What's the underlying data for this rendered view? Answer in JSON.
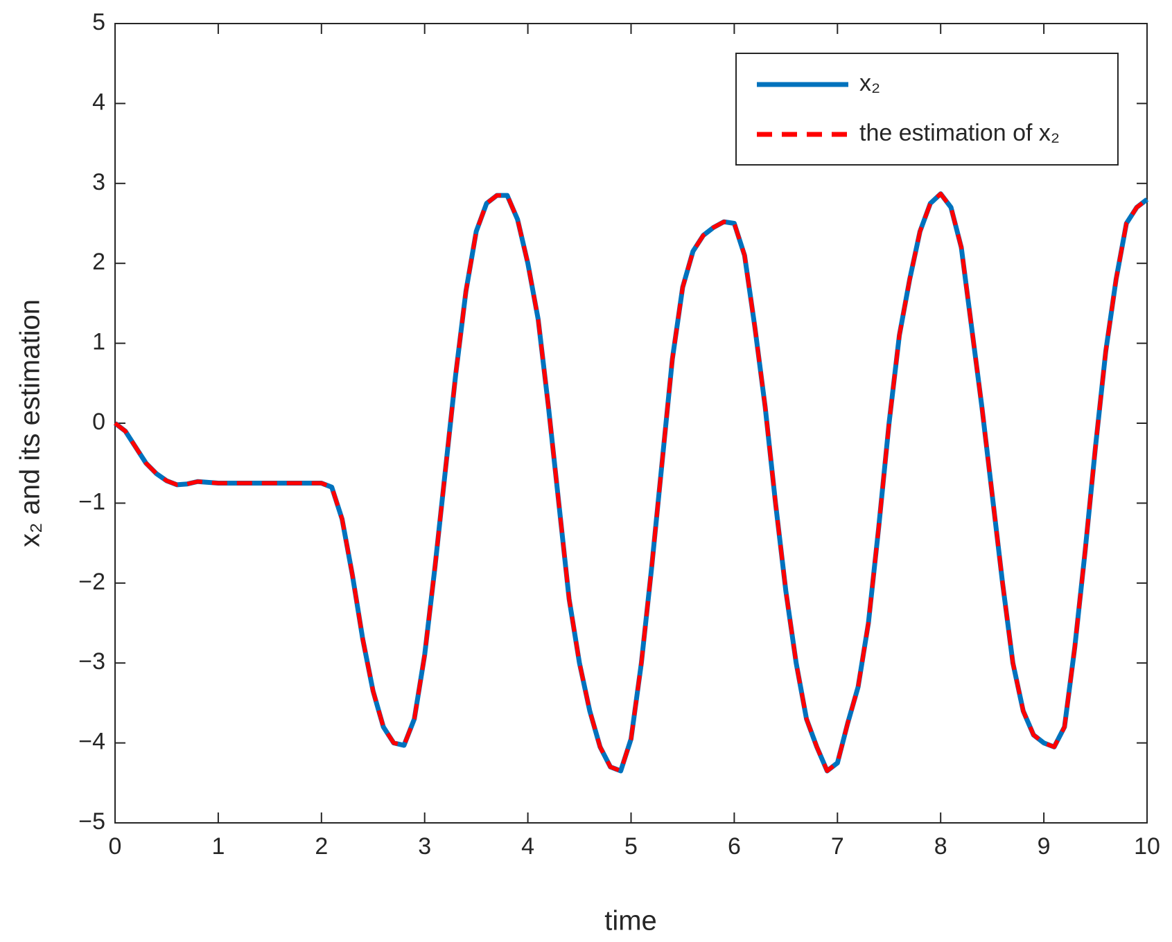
{
  "chart_data": {
    "type": "line",
    "xlabel": "time",
    "ylabel": "x₂ and its estimation",
    "x": [
      0,
      0.1,
      0.2,
      0.3,
      0.4,
      0.5,
      0.6,
      0.7,
      0.8,
      0.9,
      1,
      1.1,
      1.2,
      1.3,
      1.4,
      1.5,
      1.6,
      1.7,
      1.8,
      1.9,
      2,
      2.1,
      2.2,
      2.3,
      2.4,
      2.5,
      2.6,
      2.7,
      2.8,
      2.9,
      3,
      3.1,
      3.2,
      3.3,
      3.4,
      3.5,
      3.6,
      3.7,
      3.8,
      3.9,
      4,
      4.1,
      4.2,
      4.3,
      4.4,
      4.5,
      4.6,
      4.7,
      4.8,
      4.9,
      5,
      5.1,
      5.2,
      5.3,
      5.4,
      5.5,
      5.6,
      5.7,
      5.8,
      5.9,
      6,
      6.1,
      6.2,
      6.3,
      6.4,
      6.5,
      6.6,
      6.7,
      6.8,
      6.9,
      7,
      7.1,
      7.2,
      7.3,
      7.4,
      7.5,
      7.6,
      7.7,
      7.8,
      7.9,
      8,
      8.1,
      8.2,
      8.3,
      8.4,
      8.5,
      8.6,
      8.7,
      8.8,
      8.9,
      9,
      9.1,
      9.2,
      9.3,
      9.4,
      9.5,
      9.6,
      9.7,
      9.8,
      9.9,
      10
    ],
    "series": [
      {
        "name": "x₂",
        "color": "#0072bd",
        "style": "solid",
        "values": [
          0,
          -0.1,
          -0.3,
          -0.5,
          -0.63,
          -0.72,
          -0.77,
          -0.76,
          -0.73,
          -0.74,
          -0.75,
          -0.75,
          -0.75,
          -0.75,
          -0.75,
          -0.75,
          -0.75,
          -0.75,
          -0.75,
          -0.75,
          -0.75,
          -0.8,
          -1.2,
          -1.9,
          -2.7,
          -3.35,
          -3.8,
          -4.0,
          -4.03,
          -3.7,
          -2.9,
          -1.8,
          -0.6,
          0.6,
          1.65,
          2.4,
          2.75,
          2.85,
          2.85,
          2.55,
          2.0,
          1.3,
          0.2,
          -1.0,
          -2.2,
          -3.0,
          -3.6,
          -4.05,
          -4.3,
          -4.35,
          -3.95,
          -3.0,
          -1.8,
          -0.5,
          0.8,
          1.7,
          2.15,
          2.35,
          2.45,
          2.52,
          2.5,
          2.1,
          1.2,
          0.2,
          -1.0,
          -2.1,
          -3.0,
          -3.7,
          -4.05,
          -4.35,
          -4.25,
          -3.75,
          -3.3,
          -2.5,
          -1.3,
          0.0,
          1.1,
          1.8,
          2.4,
          2.75,
          2.87,
          2.7,
          2.2,
          1.2,
          0.2,
          -0.9,
          -2.0,
          -3.0,
          -3.6,
          -3.9,
          -4.0,
          -4.05,
          -3.8,
          -2.8,
          -1.6,
          -0.3,
          0.9,
          1.8,
          2.5,
          2.7,
          2.8
        ]
      },
      {
        "name": "the estimation of x₂",
        "color": "#ff0000",
        "style": "dashed",
        "values": [
          0,
          -0.1,
          -0.3,
          -0.5,
          -0.63,
          -0.72,
          -0.77,
          -0.76,
          -0.73,
          -0.74,
          -0.75,
          -0.75,
          -0.75,
          -0.75,
          -0.75,
          -0.75,
          -0.75,
          -0.75,
          -0.75,
          -0.75,
          -0.75,
          -0.8,
          -1.2,
          -1.9,
          -2.7,
          -3.35,
          -3.8,
          -4.0,
          -4.03,
          -3.7,
          -2.9,
          -1.8,
          -0.6,
          0.6,
          1.65,
          2.4,
          2.75,
          2.85,
          2.85,
          2.55,
          2.0,
          1.3,
          0.2,
          -1.0,
          -2.2,
          -3.0,
          -3.6,
          -4.05,
          -4.3,
          -4.35,
          -3.95,
          -3.0,
          -1.8,
          -0.5,
          0.8,
          1.7,
          2.15,
          2.35,
          2.45,
          2.52,
          2.5,
          2.1,
          1.2,
          0.2,
          -1.0,
          -2.1,
          -3.0,
          -3.7,
          -4.05,
          -4.35,
          -4.25,
          -3.75,
          -3.3,
          -2.5,
          -1.3,
          0.0,
          1.1,
          1.8,
          2.4,
          2.75,
          2.87,
          2.7,
          2.2,
          1.2,
          0.2,
          -0.9,
          -2.0,
          -3.0,
          -3.6,
          -3.9,
          -4.0,
          -4.05,
          -3.8,
          -2.8,
          -1.6,
          -0.3,
          0.9,
          1.8,
          2.5,
          2.7,
          2.8
        ]
      }
    ],
    "xlim": [
      0,
      10
    ],
    "xticks": [
      0,
      1,
      2,
      3,
      4,
      5,
      6,
      7,
      8,
      9,
      10
    ],
    "ylim": [
      -5,
      5
    ],
    "yticks": [
      {
        "value": -5,
        "label": "−5"
      },
      {
        "value": -4,
        "label": "−4"
      },
      {
        "value": -3,
        "label": "−3"
      },
      {
        "value": -2,
        "label": "−2"
      },
      {
        "value": -1,
        "label": "−1"
      },
      0,
      1,
      2,
      3,
      4,
      5
    ],
    "legend": "top-right",
    "grid": false
  }
}
